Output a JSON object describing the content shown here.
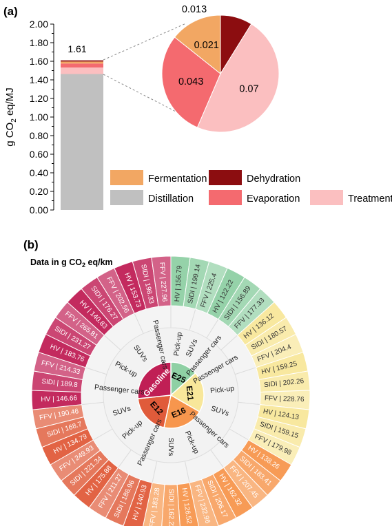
{
  "panel_a_label": "(a)",
  "panel_b_label": "(b)",
  "chart_data": [
    {
      "type": "bar",
      "ylabel_main": "g CO",
      "ylabel_sub": "2",
      "ylabel_rest": " eq/MJ",
      "ylim": [
        0,
        2.0
      ],
      "ticks": [
        "0.00",
        "0.20",
        "0.40",
        "0.60",
        "0.80",
        "1.00",
        "1.20",
        "1.40",
        "1.60",
        "1.80",
        "2.00"
      ],
      "total_label": "1.61",
      "stack": [
        {
          "name": "Distillation",
          "value": 1.463
        },
        {
          "name": "Treatment",
          "value": 0.07
        },
        {
          "name": "Evaporation",
          "value": 0.043
        },
        {
          "name": "Fermentation",
          "value": 0.021
        },
        {
          "name": "Dehydration",
          "value": 0.013
        }
      ]
    },
    {
      "type": "pie",
      "slices": [
        {
          "name": "Dehydration",
          "value": 0.013,
          "label": "0.013"
        },
        {
          "name": "Treatment",
          "value": 0.07,
          "label": "0.07"
        },
        {
          "name": "Evaporation",
          "value": 0.043,
          "label": "0.043"
        },
        {
          "name": "Fermentation",
          "value": 0.021,
          "label": "0.021"
        }
      ]
    },
    {
      "type": "sunburst",
      "title_pre": "Data in g CO",
      "title_sub": "2",
      "title_post": " eq/km",
      "fuels": [
        {
          "name": "E25",
          "color": "#8fd0a4",
          "classes": [
            {
              "name": "Pick-up",
              "items": [
                "HV | 156.79",
                "SIDI | 199.14"
              ]
            },
            {
              "name": "SUVs",
              "items": [
                "FFV | 225.4",
                "HV | 122.22"
              ]
            },
            {
              "name": "Passenger cars",
              "items": [
                "SIDI | 156.89",
                "FFV | 177.33"
              ]
            }
          ]
        },
        {
          "name": "E21",
          "color": "#f8e79a",
          "classes": [
            {
              "name": "Passenger cars",
              "items": [
                "HV | 136.12",
                "SIDI | 180.57",
                "FFV | 204.4"
              ]
            },
            {
              "name": "Pick-up",
              "items": [
                "HV | 159.25",
                "SIDI | 202.26",
                "FFV | 228.76"
              ]
            },
            {
              "name": "SUVs",
              "items": [
                "HV | 124.13",
                "SIDI | 159.15",
                "FFV | 179.98"
              ]
            }
          ]
        },
        {
          "name": "E16",
          "color": "#f7964d",
          "classes": [
            {
              "name": "Passenger cars",
              "items": [
                "HV | 138.26",
                "SIDI | 183.41",
                "FFV | 207.45"
              ]
            },
            {
              "name": "Pick-up",
              "items": [
                "HV | 162.32",
                "SIDI | 206.17",
                "FFV | 232.96"
              ]
            },
            {
              "name": "SUVs",
              "items": [
                "HV | 126.52",
                "SIDI | 162.22",
                "FFV | 183.28"
              ]
            }
          ]
        },
        {
          "name": "E12",
          "color": "#e05b3a",
          "classes": [
            {
              "name": "Passenger cars",
              "items": [
                "HV | 140.93",
                "SIDI | 186.96",
                "FFV | 211.27"
              ]
            },
            {
              "name": "Pick-up",
              "items": [
                "HV | 175.88",
                "SIDI | 221.34",
                "FFV | 249.93"
              ]
            },
            {
              "name": "SUVs",
              "items": [
                "HV | 134.79",
                "SIDI | 168.7",
                "FFV | 190.46"
              ]
            }
          ]
        },
        {
          "name": "Gasoline",
          "color": "#c01f55",
          "classes": [
            {
              "name": "Passenger cars",
              "items": [
                "HV | 146.66",
                "SIDI | 189.8",
                "FFV | 214.33"
              ]
            },
            {
              "name": "Pick-up",
              "items": [
                "HV | 183.76",
                "SIDI | 231.27",
                "FFV | 265.81"
              ]
            },
            {
              "name": "SUVs",
              "items": [
                "HV | 140.83",
                "SIDI | 176.27",
                "FFV | 202.56"
              ]
            },
            {
              "name": "Passenger cars",
              "items": [
                "HV | 153.73",
                "SIDI | 198.33",
                "FFV | 227.96"
              ]
            }
          ]
        }
      ]
    }
  ],
  "colors": {
    "Distillation": "#c0c0c0",
    "Treatment": "#fbbfc0",
    "Evaporation": "#f46a6f",
    "Fermentation": "#f2a763",
    "Dehydration": "#8c0d10"
  },
  "legend": [
    {
      "name": "Fermentation"
    },
    {
      "name": "Dehydration"
    },
    {
      "name": "Distillation"
    },
    {
      "name": "Evaporation"
    },
    {
      "name": "Treatment"
    }
  ]
}
